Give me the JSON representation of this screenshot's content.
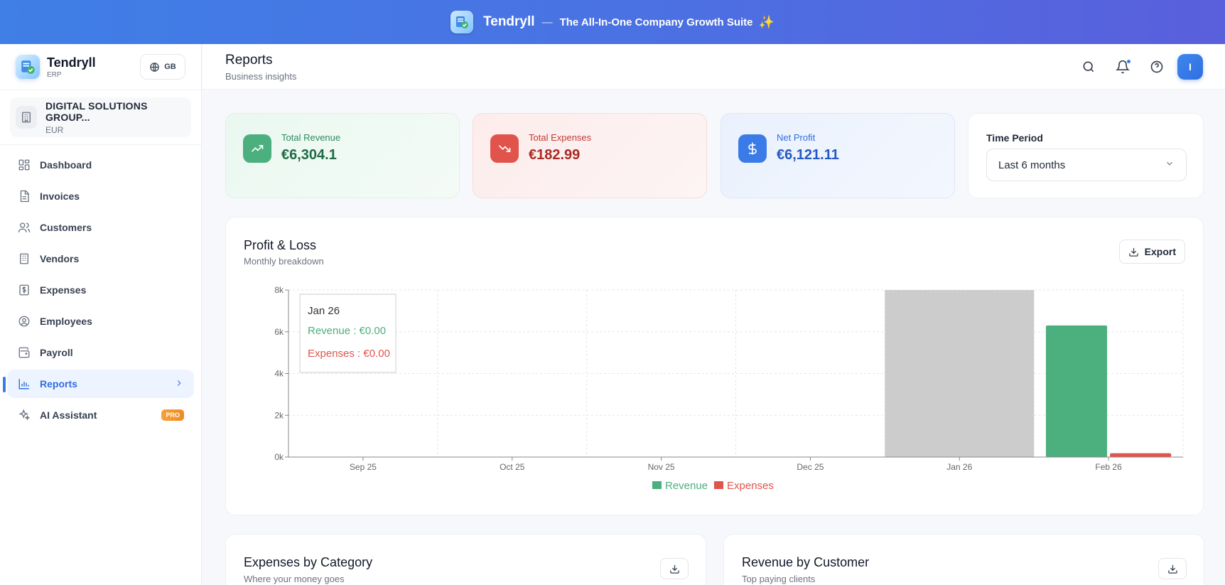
{
  "banner": {
    "brand": "Tendryll",
    "separator": "—",
    "tagline": "The All-In-One Company Growth Suite",
    "sparkle": "✨"
  },
  "sidebar": {
    "app_name": "Tendryll",
    "app_sub": "ERP",
    "lang": "GB",
    "company": {
      "name": "DIGITAL SOLUTIONS GROUP...",
      "currency": "EUR"
    },
    "items": [
      {
        "label": "Dashboard",
        "icon": "dashboard-icon"
      },
      {
        "label": "Invoices",
        "icon": "invoice-icon"
      },
      {
        "label": "Customers",
        "icon": "customers-icon"
      },
      {
        "label": "Vendors",
        "icon": "vendors-icon"
      },
      {
        "label": "Expenses",
        "icon": "expenses-icon"
      },
      {
        "label": "Employees",
        "icon": "employees-icon"
      },
      {
        "label": "Payroll",
        "icon": "payroll-icon"
      },
      {
        "label": "Reports",
        "icon": "reports-icon",
        "active": true
      },
      {
        "label": "AI Assistant",
        "icon": "sparkles-icon",
        "badge": "PRO"
      }
    ]
  },
  "topbar": {
    "title": "Reports",
    "subtitle": "Business insights",
    "avatar": "I"
  },
  "stats": {
    "revenue": {
      "label": "Total Revenue",
      "value": "€6,304.1"
    },
    "expenses": {
      "label": "Total Expenses",
      "value": "€182.99"
    },
    "net": {
      "label": "Net Profit",
      "value": "€6,121.11"
    }
  },
  "period": {
    "label": "Time Period",
    "selected": "Last 6 months"
  },
  "profit_loss": {
    "title": "Profit & Loss",
    "subtitle": "Monthly breakdown",
    "export_label": "Export",
    "tooltip": {
      "title": "Jan 26",
      "revenue": "Revenue : €0.00",
      "expenses": "Expenses : €0.00"
    }
  },
  "expenses_card": {
    "title": "Expenses by Category",
    "subtitle": "Where your money goes"
  },
  "revenue_card": {
    "title": "Revenue by Customer",
    "subtitle": "Top paying clients"
  },
  "colors": {
    "revenue": "#4caf7e",
    "expenses": "#e0544b",
    "accent": "#3b7be8",
    "hover": "#cccccc"
  },
  "chart_data": {
    "type": "bar",
    "categories": [
      "Sep 25",
      "Oct 25",
      "Nov 25",
      "Dec 25",
      "Jan 26",
      "Feb 26"
    ],
    "series": [
      {
        "name": "Revenue",
        "values": [
          0,
          0,
          0,
          0,
          0,
          6304.1
        ]
      },
      {
        "name": "Expenses",
        "values": [
          0,
          0,
          0,
          0,
          0,
          182.99
        ]
      }
    ],
    "yticks": [
      "0k",
      "2k",
      "4k",
      "6k",
      "8k"
    ],
    "ylim": [
      0,
      8000
    ],
    "grid": true,
    "legend": "bottom-center",
    "highlighted_category": "Jan 26"
  }
}
